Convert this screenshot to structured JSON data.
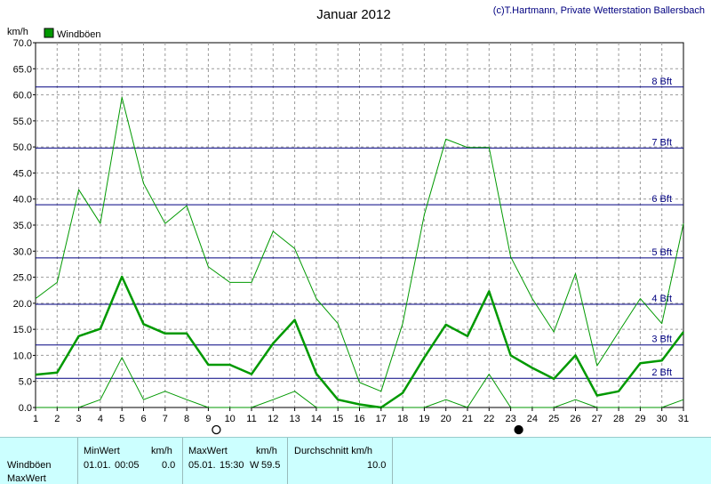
{
  "title": "Januar 2012",
  "credit": "(c)T.Hartmann, Private Wetterstation Ballersbach",
  "y_unit": "km/h",
  "chart_data": {
    "type": "line",
    "title": "Januar 2012",
    "ylabel": "km/h",
    "xlabel": "",
    "xlim": [
      1,
      31
    ],
    "ylim": [
      0,
      70
    ],
    "grid": true,
    "legend_placement": "top-left",
    "x": [
      1,
      2,
      3,
      4,
      5,
      6,
      7,
      8,
      9,
      10,
      11,
      12,
      13,
      14,
      15,
      16,
      17,
      18,
      19,
      20,
      21,
      22,
      23,
      24,
      25,
      26,
      27,
      28,
      29,
      30,
      31
    ],
    "x_tick_labels": [
      "1",
      "2",
      "3",
      "4",
      "5",
      "6",
      "7",
      "8",
      "9",
      "10",
      "11",
      "12",
      "13",
      "14",
      "15",
      "16",
      "17",
      "18",
      "19",
      "20",
      "21",
      "22",
      "23",
      "24",
      "25",
      "26",
      "27",
      "28",
      "29",
      "30",
      "31"
    ],
    "y_tick_labels": [
      "0.0",
      "5.0",
      "10.0",
      "15.0",
      "20.0",
      "25.0",
      "30.0",
      "35.0",
      "40.0",
      "45.0",
      "50.0",
      "55.0",
      "60.0",
      "65.0",
      "70.0"
    ],
    "y_ticks": [
      0,
      5,
      10,
      15,
      20,
      25,
      30,
      35,
      40,
      45,
      50,
      55,
      60,
      65,
      70
    ],
    "series": [
      {
        "name": "Windböen",
        "role": "mean",
        "color": "#009900",
        "values": [
          6.3,
          6.7,
          13.7,
          15.1,
          25.1,
          16.0,
          14.2,
          14.2,
          8.2,
          8.2,
          6.4,
          12.3,
          16.8,
          6.5,
          1.5,
          0.6,
          0.0,
          2.8,
          9.6,
          15.9,
          13.7,
          22.3,
          10.0,
          7.6,
          5.5,
          10.0,
          2.3,
          3.1,
          8.5,
          9.0,
          14.5
        ]
      },
      {
        "role": "max",
        "color": "#009900",
        "values": [
          20.9,
          24.0,
          41.8,
          35.3,
          59.5,
          43.0,
          35.3,
          38.7,
          27.0,
          24.0,
          24.0,
          33.8,
          30.5,
          20.9,
          16.1,
          4.8,
          3.1,
          16.1,
          37.0,
          51.5,
          49.9,
          49.9,
          28.9,
          20.9,
          14.5,
          25.7,
          8.0,
          14.5,
          20.9,
          16.1,
          35.3
        ]
      },
      {
        "role": "min",
        "color": "#009900",
        "values": [
          0.0,
          0.0,
          0.0,
          1.5,
          9.6,
          1.5,
          3.1,
          1.5,
          0.0,
          0.0,
          0.0,
          1.5,
          3.1,
          0.0,
          0.0,
          0.0,
          0.0,
          0.0,
          0.0,
          1.5,
          0.0,
          6.4,
          0.0,
          0.0,
          0.0,
          1.5,
          0.0,
          0.0,
          0.0,
          0.0,
          1.5
        ]
      }
    ],
    "reference_lines": [
      {
        "value": 5.6,
        "label": "2 Bft"
      },
      {
        "value": 12.0,
        "label": "3 Bft"
      },
      {
        "value": 19.8,
        "label": "4 Bft"
      },
      {
        "value": 28.7,
        "label": "5 Bft"
      },
      {
        "value": 38.9,
        "label": "6 Bft"
      },
      {
        "value": 49.8,
        "label": "7 Bft"
      },
      {
        "value": 61.5,
        "label": "8 Bft"
      }
    ],
    "moon_phases": [
      {
        "day": 9,
        "phase": "full"
      },
      {
        "day": 23,
        "phase": "new"
      }
    ]
  },
  "stats": {
    "row_label": "Windböen",
    "row_label2": "MaxWert",
    "min_header": "MinWert",
    "unit_header": "km/h",
    "max_header": "MaxWert",
    "unit_header2": "km/h",
    "avg_header": "Durchschnitt km/h",
    "min_date": "01.01.",
    "min_time": "00:05",
    "min_value": "0.0",
    "max_date": "05.01.",
    "max_time": "15:30",
    "max_dir": "W",
    "max_value": "59.5",
    "avg_value": "10.0"
  }
}
